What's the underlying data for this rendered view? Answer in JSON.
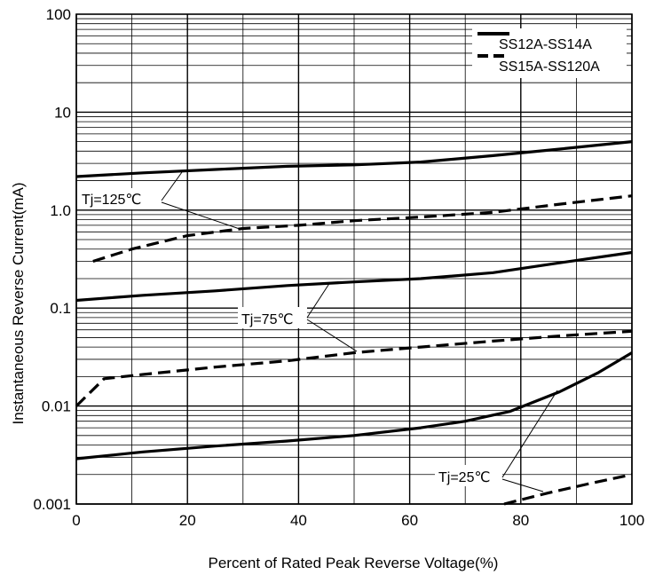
{
  "chart_data": {
    "type": "line",
    "title": "",
    "xlabel": "Percent of Rated Peak Reverse Voltage(%)",
    "ylabel": "Instantaneous Reverse Current(mA)",
    "x_scale": "linear",
    "y_scale": "log",
    "xlim": [
      0,
      100
    ],
    "ylim": [
      0.001,
      100
    ],
    "x_ticks": [
      "0",
      "20",
      "40",
      "60",
      "80",
      "100"
    ],
    "y_ticks": [
      "0.001",
      "0.01",
      "0.1",
      "1.0",
      "10",
      "100"
    ],
    "grid": true,
    "legend_position": "top-right",
    "legend": [
      {
        "label": "SS12A-SS14A",
        "style": "solid"
      },
      {
        "label": "SS15A-SS120A",
        "style": "dashed"
      }
    ],
    "annotations": [
      "Tj=125℃",
      "Tj=75℃",
      "Tj=25℃"
    ],
    "series": [
      {
        "style": "solid",
        "temp": "Tj=125℃",
        "x": [
          0,
          12,
          25,
          38,
          50,
          62,
          75,
          87,
          100
        ],
        "y": [
          2.2,
          2.4,
          2.6,
          2.8,
          2.9,
          3.1,
          3.6,
          4.2,
          5.0
        ]
      },
      {
        "style": "dashed",
        "temp": "Tj=125℃",
        "x": [
          3,
          10,
          20,
          30,
          40,
          50,
          62,
          75,
          87,
          100
        ],
        "y": [
          0.3,
          0.4,
          0.55,
          0.65,
          0.7,
          0.78,
          0.85,
          0.95,
          1.15,
          1.4
        ]
      },
      {
        "style": "solid",
        "temp": "Tj=75℃",
        "x": [
          0,
          12,
          25,
          38,
          50,
          62,
          75,
          87,
          100
        ],
        "y": [
          0.12,
          0.135,
          0.15,
          0.17,
          0.185,
          0.2,
          0.23,
          0.29,
          0.37
        ]
      },
      {
        "style": "dashed",
        "temp": "Tj=75℃",
        "x": [
          0,
          5,
          12,
          25,
          38,
          50,
          62,
          75,
          87,
          100
        ],
        "y": [
          0.01,
          0.019,
          0.021,
          0.025,
          0.029,
          0.035,
          0.04,
          0.046,
          0.052,
          0.058
        ]
      },
      {
        "style": "solid",
        "temp": "Tj=25℃",
        "x": [
          0,
          12,
          25,
          38,
          50,
          62,
          70,
          78,
          87,
          94,
          100
        ],
        "y": [
          0.0029,
          0.0034,
          0.0039,
          0.0044,
          0.005,
          0.006,
          0.007,
          0.0088,
          0.014,
          0.022,
          0.035
        ]
      },
      {
        "style": "dashed",
        "temp": "Tj=25℃",
        "x": [
          77,
          85,
          92,
          100
        ],
        "y": [
          0.001,
          0.0013,
          0.0016,
          0.002
        ]
      }
    ]
  }
}
